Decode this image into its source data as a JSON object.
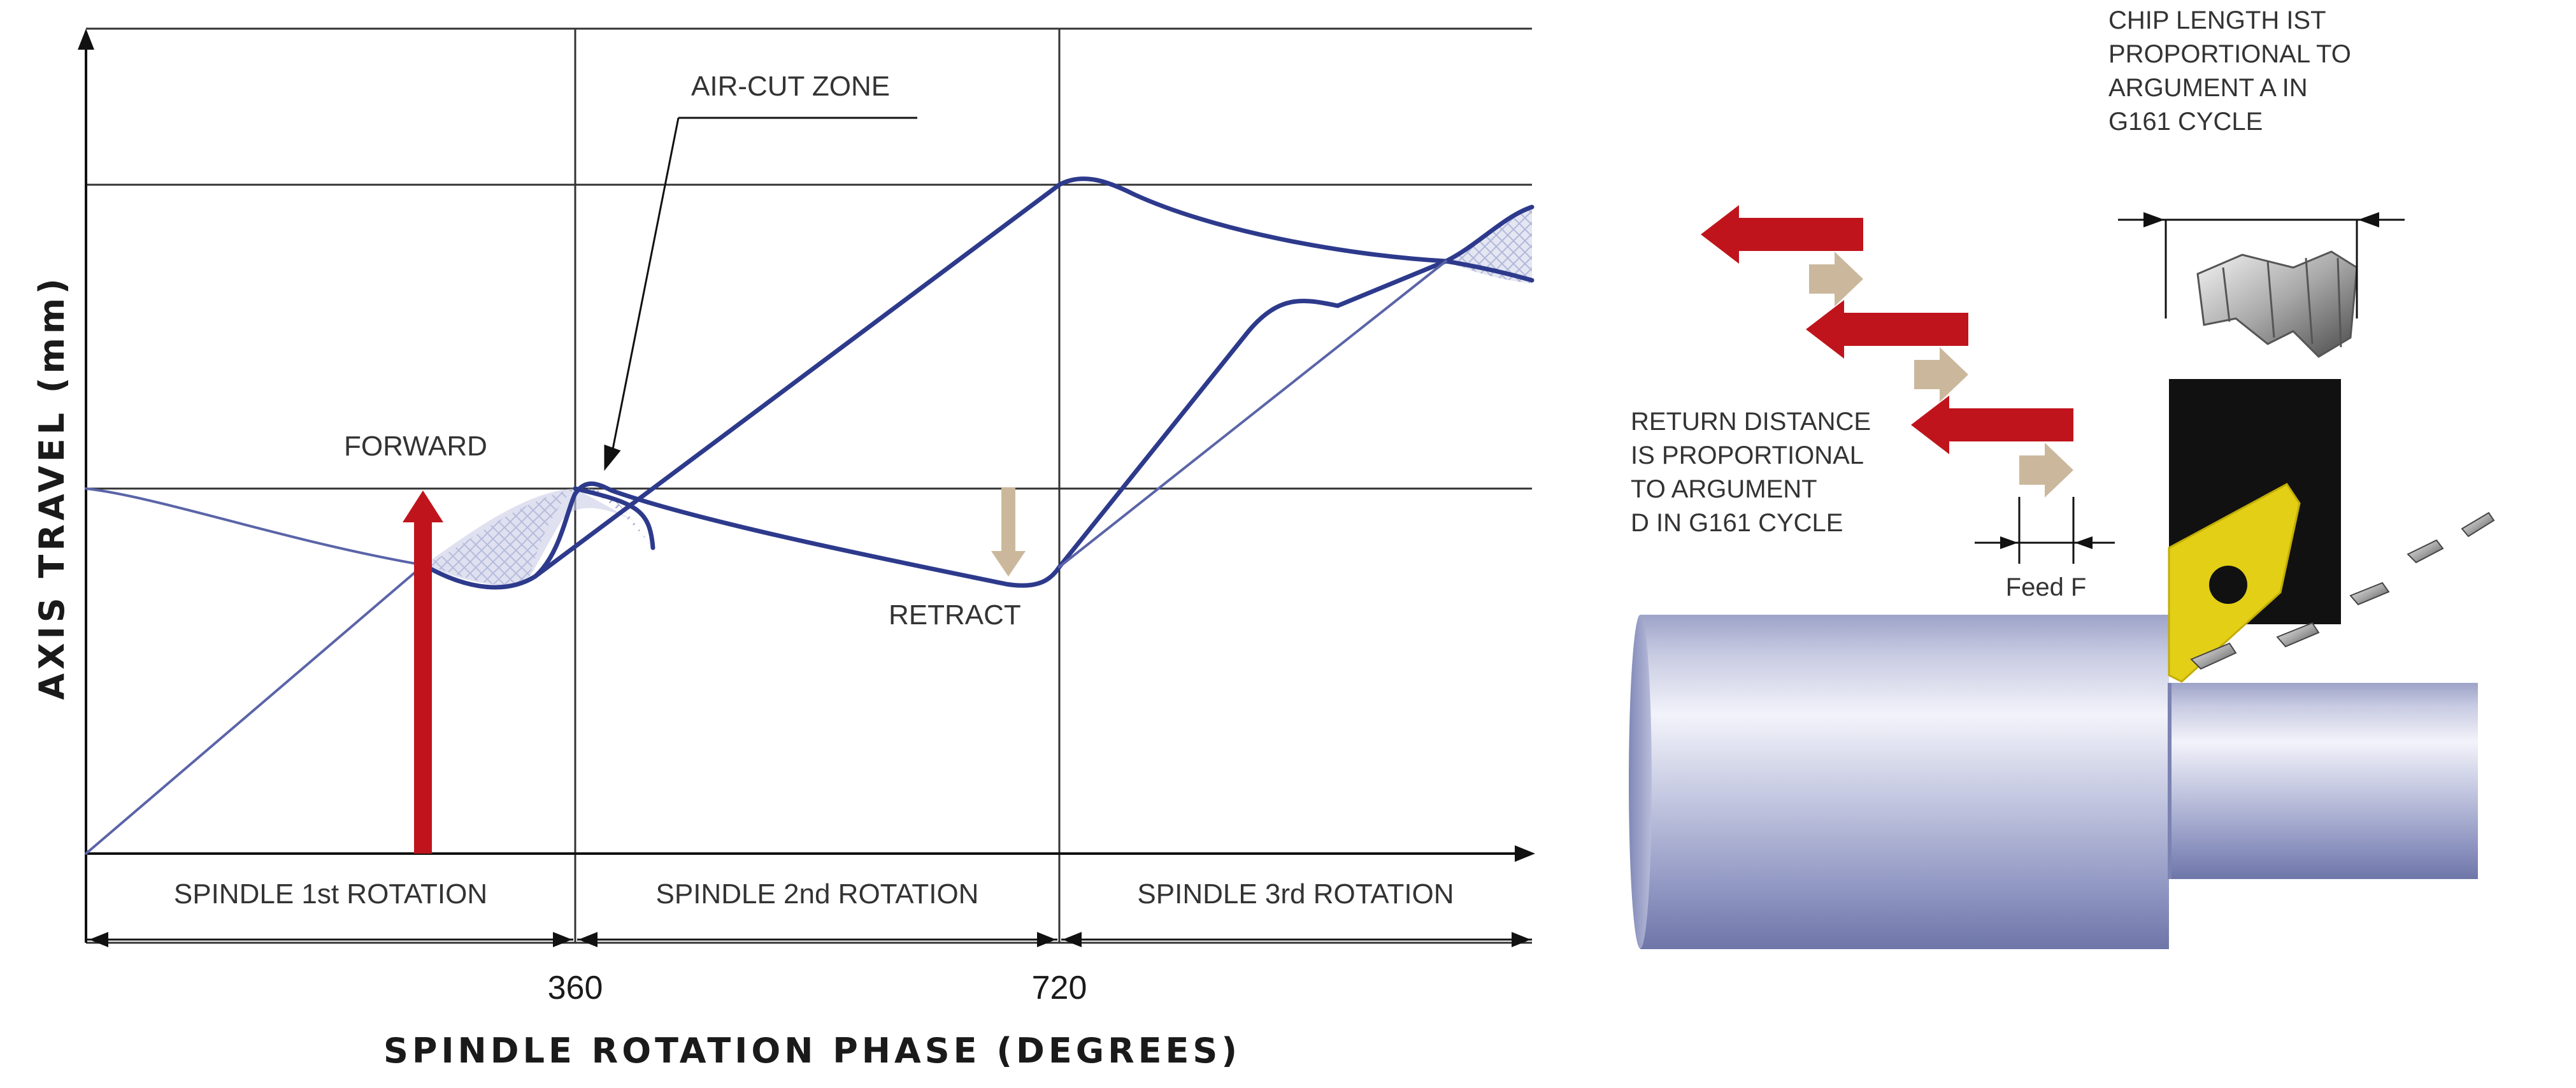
{
  "left_diagram": {
    "y_axis_label": "AXIS TRAVEL (mm)",
    "x_axis_label": "SPINDLE ROTATION PHASE (DEGREES)",
    "tick_labels": [
      "360",
      "720"
    ],
    "phase_labels": [
      "SPINDLE 1st ROTATION",
      "SPINDLE 2nd ROTATION",
      "SPINDLE 3rd ROTATION"
    ],
    "annotations": {
      "air_cut_zone": "AIR-CUT ZONE",
      "forward": "FORWARD",
      "retract": "RETRACT"
    }
  },
  "right_diagram": {
    "chip_length_note": [
      "CHIP LENGTH IST",
      "PROPORTIONAL TO",
      "ARGUMENT A IN",
      "G161 CYCLE"
    ],
    "return_distance_note": [
      "RETURN DISTANCE",
      "IS PROPORTIONAL",
      "TO ARGUMENT",
      "D IN G161 CYCLE"
    ],
    "feed_label": "Feed F"
  },
  "colors": {
    "curve": "#2d3a8c",
    "forward_arrow": "#c0141c",
    "retract_arrow": "#cbb89c",
    "insert": "#e2cf16",
    "tool_holder": "#111111"
  }
}
